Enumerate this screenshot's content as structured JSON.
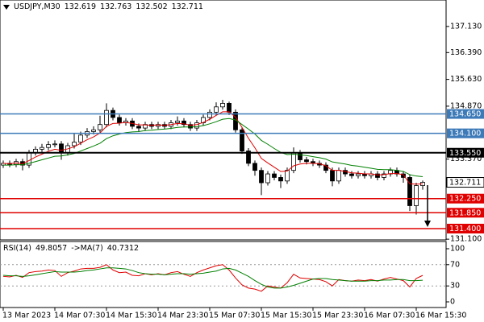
{
  "chart_data": [
    {
      "type": "candlestick",
      "symbol": "USDJPY,M30",
      "header_values": [
        132.619,
        132.763,
        132.502,
        132.711
      ],
      "ylim": [
        131.08,
        137.88
      ],
      "yticks": [
        {
          "value": 137.13,
          "label": "137.130"
        },
        {
          "value": 136.39,
          "label": "136.390"
        },
        {
          "value": 135.63,
          "label": "135.630"
        },
        {
          "value": 134.87,
          "label": "134.870"
        },
        {
          "value": 133.37,
          "label": "133.370"
        },
        {
          "value": 131.1,
          "label": "131.100"
        }
      ],
      "levels": [
        {
          "value": 134.65,
          "label": "134.650",
          "color": "#3d7ab8"
        },
        {
          "value": 134.1,
          "label": "134.100",
          "color": "#3d7ab8"
        },
        {
          "value": 133.55,
          "label": "133.550",
          "color": "#000000"
        },
        {
          "value": 132.25,
          "label": "132.250",
          "color": "#e00000"
        },
        {
          "value": 131.85,
          "label": "131.850",
          "color": "#e00000"
        },
        {
          "value": 131.4,
          "label": "131.400",
          "color": "#e00000"
        }
      ],
      "current_price": 132.711,
      "up_color": "#ffffff",
      "down_color": "#000000",
      "open": [
        133.2,
        133.25,
        133.22,
        133.3,
        133.2,
        133.55,
        133.65,
        133.7,
        133.78,
        133.8,
        133.55,
        133.75,
        133.85,
        134.05,
        134.15,
        134.2,
        134.35,
        134.75,
        134.55,
        134.4,
        134.45,
        134.3,
        134.25,
        134.35,
        134.3,
        134.35,
        134.3,
        134.4,
        134.45,
        134.35,
        134.25,
        134.4,
        134.55,
        134.7,
        134.85,
        134.95,
        134.7,
        134.2,
        133.6,
        133.25,
        133.05,
        132.7,
        132.95,
        132.85,
        132.75,
        133.05,
        133.55,
        133.35,
        133.3,
        133.25,
        133.2,
        133.05,
        132.75,
        133.05,
        132.95,
        132.9,
        132.95,
        132.9,
        132.95,
        132.85,
        132.95,
        133.05,
        132.95,
        132.85,
        132.05,
        132.619
      ],
      "high": [
        133.33,
        133.33,
        133.38,
        133.38,
        133.63,
        133.73,
        133.8,
        133.88,
        133.9,
        133.88,
        133.83,
        134.1,
        134.15,
        134.25,
        134.3,
        134.6,
        134.95,
        134.83,
        134.63,
        134.53,
        134.53,
        134.38,
        134.43,
        134.43,
        134.43,
        134.43,
        134.48,
        134.58,
        134.53,
        134.43,
        134.48,
        134.63,
        134.78,
        134.98,
        135.05,
        135.0,
        134.78,
        134.28,
        133.68,
        133.33,
        133.13,
        133.03,
        133.03,
        132.93,
        133.13,
        133.7,
        133.63,
        133.43,
        133.38,
        133.33,
        133.28,
        133.13,
        133.13,
        133.13,
        133.03,
        133.03,
        133.03,
        133.03,
        133.03,
        133.03,
        133.13,
        133.13,
        133.03,
        132.93,
        132.7,
        132.763
      ],
      "low": [
        133.12,
        133.14,
        133.14,
        133.05,
        133.12,
        133.47,
        133.57,
        133.62,
        133.7,
        133.35,
        133.47,
        133.67,
        133.77,
        133.97,
        134.07,
        134.12,
        134.27,
        134.47,
        134.32,
        134.32,
        134.22,
        134.15,
        134.17,
        134.22,
        134.22,
        134.22,
        134.22,
        134.32,
        134.27,
        134.17,
        134.17,
        134.32,
        134.47,
        134.62,
        134.77,
        134.62,
        134.12,
        133.52,
        133.17,
        132.9,
        132.35,
        132.62,
        132.77,
        132.55,
        132.67,
        132.97,
        133.27,
        133.22,
        133.17,
        133.12,
        132.97,
        132.6,
        132.67,
        132.87,
        132.82,
        132.82,
        132.82,
        132.82,
        132.77,
        132.77,
        132.87,
        132.87,
        132.7,
        131.9,
        131.8,
        132.502
      ],
      "close": [
        133.25,
        133.22,
        133.3,
        133.2,
        133.55,
        133.65,
        133.7,
        133.78,
        133.8,
        133.55,
        133.75,
        133.85,
        134.05,
        134.15,
        134.2,
        134.35,
        134.75,
        134.55,
        134.4,
        134.45,
        134.3,
        134.25,
        134.35,
        134.3,
        134.35,
        134.3,
        134.4,
        134.45,
        134.35,
        134.25,
        134.4,
        134.55,
        134.7,
        134.85,
        134.95,
        134.7,
        134.2,
        133.6,
        133.25,
        133.05,
        132.7,
        132.95,
        132.85,
        132.75,
        133.05,
        133.55,
        133.35,
        133.3,
        133.25,
        133.2,
        133.05,
        132.75,
        133.05,
        132.95,
        132.9,
        132.95,
        132.9,
        132.95,
        132.85,
        132.95,
        133.05,
        132.95,
        132.85,
        132.05,
        132.619,
        132.711
      ],
      "series": [
        {
          "color": "#e00000",
          "values": [
            133.25,
            133.24,
            133.26,
            133.24,
            133.33,
            133.43,
            133.51,
            133.59,
            133.65,
            133.62,
            133.66,
            133.72,
            133.82,
            133.92,
            134.0,
            134.11,
            134.3,
            134.38,
            134.39,
            134.41,
            134.38,
            134.34,
            134.34,
            134.33,
            134.34,
            134.33,
            134.35,
            134.38,
            134.37,
            134.33,
            134.35,
            134.41,
            134.5,
            134.61,
            134.71,
            134.71,
            134.56,
            134.27,
            133.96,
            133.69,
            133.39,
            133.26,
            133.14,
            133.02,
            133.03,
            133.18,
            133.23,
            133.25,
            133.25,
            133.24,
            133.18,
            133.05,
            133.05,
            133.02,
            132.98,
            132.97,
            132.95,
            132.95,
            132.92,
            132.93,
            132.96,
            132.96,
            132.93,
            132.67,
            132.66,
            132.67
          ]
        },
        {
          "color": "#008000",
          "values": [
            133.2,
            133.2,
            133.21,
            133.21,
            133.25,
            133.3,
            133.35,
            133.4,
            133.45,
            133.46,
            133.49,
            133.53,
            133.6,
            133.67,
            133.74,
            133.82,
            133.95,
            134.03,
            134.08,
            134.12,
            134.14,
            134.15,
            134.18,
            134.19,
            134.21,
            134.22,
            134.24,
            134.27,
            134.28,
            134.28,
            134.29,
            134.32,
            134.37,
            134.43,
            134.5,
            134.52,
            134.48,
            134.35,
            134.22,
            134.08,
            133.9,
            133.79,
            133.67,
            133.56,
            133.5,
            133.51,
            133.49,
            133.47,
            133.44,
            133.41,
            133.37,
            133.29,
            133.26,
            133.23,
            133.19,
            133.17,
            133.14,
            133.11,
            133.08,
            133.07,
            133.07,
            133.05,
            133.02,
            132.93,
            132.89,
            132.87
          ]
        }
      ]
    },
    {
      "type": "line",
      "indicator_label": "RSI(14)",
      "indicator_value": 49.8057,
      "ma_label": "->MA(7)",
      "ma_value": 40.7312,
      "ylim": [
        -10.6,
        113.6
      ],
      "yticks": [
        100,
        70,
        30,
        0
      ],
      "levels": [
        70,
        30
      ],
      "categories": [
        "13 Mar 2023",
        null,
        null,
        null,
        null,
        null,
        null,
        null,
        "14 Mar 07:30",
        null,
        null,
        null,
        null,
        null,
        null,
        null,
        "14 Mar 15:30",
        null,
        null,
        null,
        null,
        null,
        null,
        null,
        "14 Mar 23:30",
        null,
        null,
        null,
        null,
        null,
        null,
        null,
        "15 Mar 07:30",
        null,
        null,
        null,
        null,
        null,
        null,
        null,
        "15 Mar 15:30",
        null,
        null,
        null,
        null,
        null,
        null,
        null,
        "15 Mar 23:30",
        null,
        null,
        null,
        null,
        null,
        null,
        null,
        "16 Mar 07:30",
        null,
        null,
        null,
        null,
        null,
        null,
        null,
        "16 Mar 15:30",
        null
      ],
      "series": [
        {
          "color": "#e00000",
          "values": [
            48,
            47,
            50,
            46,
            55,
            57,
            58,
            60,
            59,
            48,
            55,
            58,
            62,
            63,
            63,
            65,
            70,
            60,
            55,
            56,
            50,
            49,
            53,
            51,
            53,
            51,
            55,
            57,
            52,
            48,
            55,
            60,
            64,
            68,
            70,
            60,
            45,
            32,
            26,
            24,
            20,
            30,
            28,
            26,
            36,
            52,
            45,
            44,
            43,
            42,
            38,
            30,
            42,
            40,
            39,
            41,
            40,
            42,
            39,
            43,
            46,
            43,
            40,
            28,
            44,
            49.8057
          ]
        },
        {
          "color": "#008000",
          "values": [
            50,
            49,
            49,
            48,
            49,
            51,
            53,
            55,
            57,
            56,
            56,
            56,
            57,
            59,
            60,
            62,
            64,
            64,
            63,
            62,
            59,
            55,
            53,
            52,
            52,
            51,
            52,
            53,
            53,
            52,
            53,
            54,
            56,
            58,
            62,
            63,
            60,
            54,
            48,
            40,
            33,
            28,
            26,
            26,
            28,
            31,
            35,
            39,
            43,
            44,
            44,
            42,
            41,
            40,
            39,
            39,
            39,
            40,
            40,
            41,
            41,
            42,
            42,
            40,
            40,
            40.7312
          ]
        }
      ]
    }
  ]
}
